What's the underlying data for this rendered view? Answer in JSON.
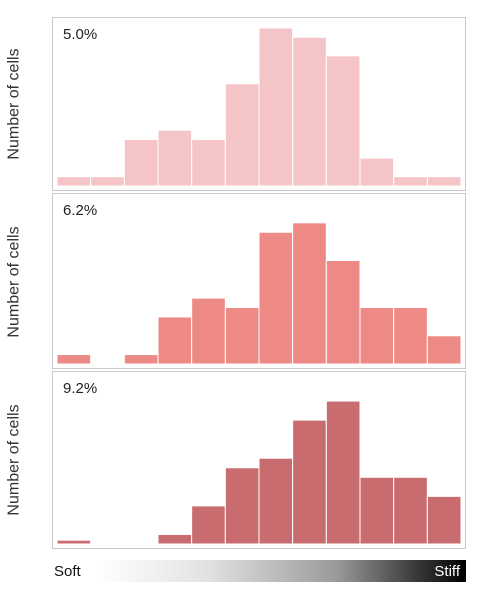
{
  "chart_data": [
    {
      "type": "bar",
      "annotation": "5.0%",
      "ylabel": "Number of cells",
      "color": "#f5c4c6",
      "ylim": [
        0,
        17
      ],
      "values": [
        1,
        1,
        5,
        6,
        5,
        11,
        17,
        16,
        14,
        3,
        1,
        1
      ]
    },
    {
      "type": "bar",
      "annotation": "6.2%",
      "ylabel": "Number of cells",
      "color": "#ed8a86",
      "ylim": [
        0,
        17
      ],
      "values": [
        1,
        0,
        1,
        5,
        7,
        6,
        14,
        15,
        11,
        6,
        6,
        3
      ]
    },
    {
      "type": "bar",
      "annotation": "9.2%",
      "ylabel": "Number of cells",
      "color": "#c86c70",
      "ylim": [
        0,
        17
      ],
      "values": [
        0.4,
        0,
        0,
        1,
        4,
        8,
        9,
        13,
        15,
        7,
        7,
        5
      ]
    }
  ],
  "scale": {
    "left_label": "Soft",
    "right_label": "Stiff"
  }
}
